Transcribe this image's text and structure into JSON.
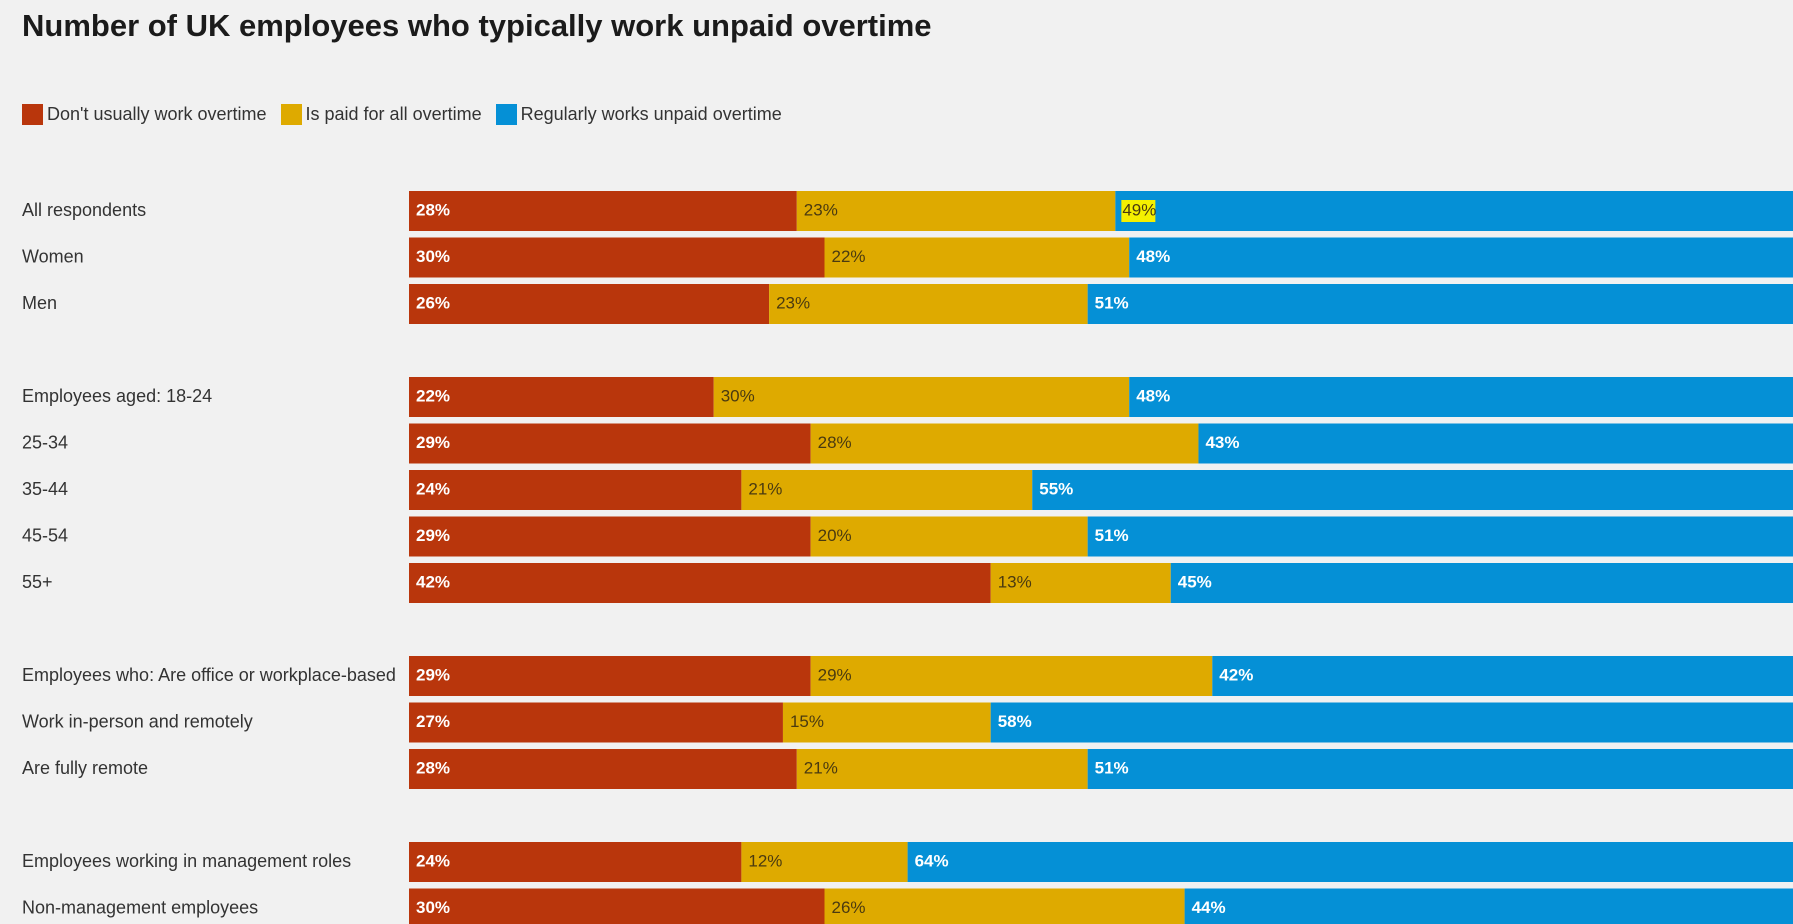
{
  "chart_data": {
    "type": "bar",
    "orientation": "horizontal",
    "stacked": true,
    "title": "Number of UK employees who typically work unpaid overtime",
    "legend_position": "top-left",
    "grid": false,
    "xlim": [
      0,
      100
    ],
    "categories": [
      "All respondents",
      "Women",
      "Men",
      "Employees aged: 18-24",
      "25-34",
      "35-44",
      "45-54",
      "55+",
      "Employees who: Are office or workplace-based",
      "Work in-person and remotely",
      "Are fully remote",
      "Employees working in management roles",
      "Non-management employees"
    ],
    "groups": [
      [
        0,
        1,
        2
      ],
      [
        3,
        4,
        5,
        6,
        7
      ],
      [
        8,
        9,
        10
      ],
      [
        11,
        12
      ]
    ],
    "series": [
      {
        "name": "Don't usually work overtime",
        "color": "#b9360c",
        "values": [
          28,
          30,
          26,
          22,
          29,
          24,
          29,
          42,
          29,
          27,
          28,
          24,
          30
        ],
        "labels": [
          "28%",
          "30%",
          "26%",
          "22%",
          "29%",
          "24%",
          "29%",
          "42%",
          "29%",
          "27%",
          "28%",
          "24%",
          "30%"
        ]
      },
      {
        "name": "Is paid for all overtime",
        "color": "#deaa00",
        "values": [
          23,
          22,
          23,
          30,
          28,
          21,
          20,
          13,
          29,
          15,
          21,
          12,
          26
        ],
        "labels": [
          "23%",
          "22%",
          "23%",
          "30%",
          "28%",
          "21%",
          "20%",
          "13%",
          "29%",
          "15%",
          "21%",
          "12%",
          "26%"
        ]
      },
      {
        "name": "Regularly works unpaid overtime",
        "color": "#0590d6",
        "values": [
          49,
          48,
          51,
          48,
          43,
          55,
          51,
          45,
          42,
          58,
          51,
          64,
          44
        ],
        "labels": [
          "49%",
          "48%",
          "51%",
          "48%",
          "43%",
          "55%",
          "51%",
          "45%",
          "42%",
          "58%",
          "51%",
          "64%",
          "44%"
        ]
      }
    ],
    "highlighted_label": {
      "series": 2,
      "row": 0,
      "color": "#f5f000"
    }
  }
}
